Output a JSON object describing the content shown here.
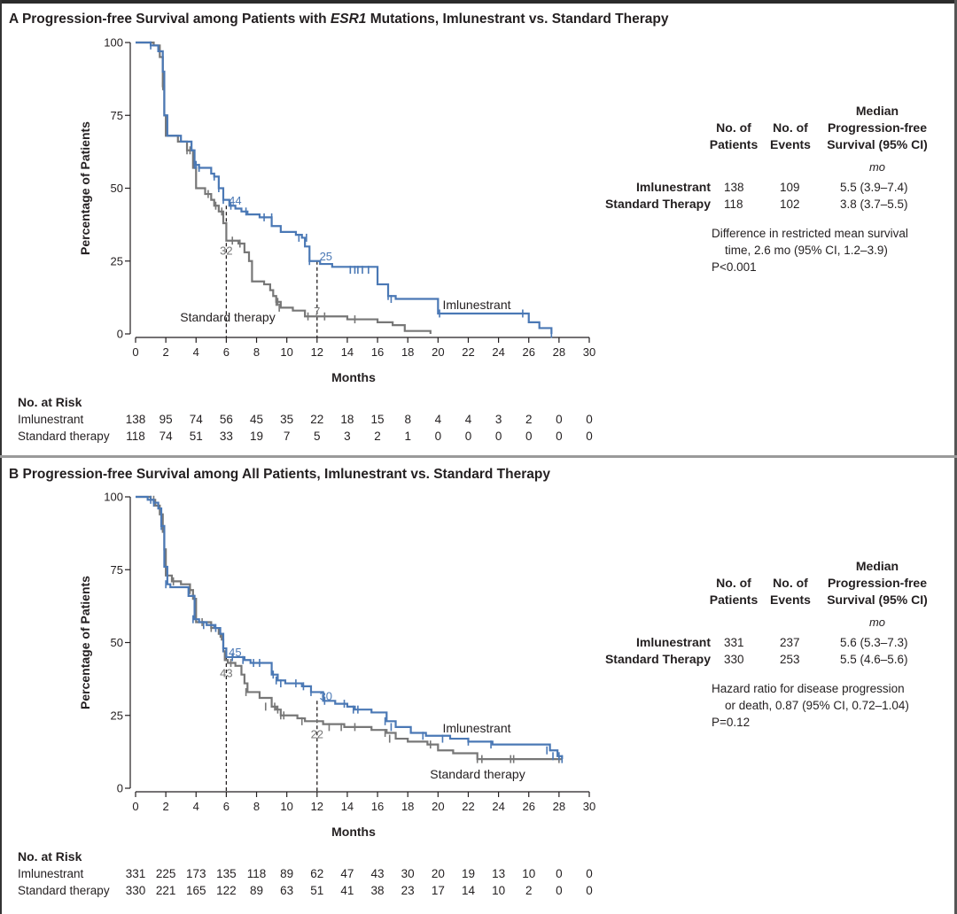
{
  "panels": [
    {
      "id": "A",
      "letter": "A",
      "title_pre": "Progression-free Survival among Patients with ",
      "title_em": "ESR1",
      "title_post": " Mutations, Imlunestrant vs. Standard Therapy",
      "ylabel": "Percentage of Patients",
      "xlabel": "Months",
      "table_headers": {
        "patients_1": "No. of",
        "patients_2": "Patients",
        "events_1": "No. of",
        "events_2": "Events",
        "median_1": "Median",
        "median_2": "Progression-free",
        "median_3": "Survival (95% CI)",
        "unit": "mo"
      },
      "table_rows": [
        {
          "arm": "Imlunestrant",
          "patients": "138",
          "events": "109",
          "median": "5.5 (3.9–7.4)"
        },
        {
          "arm": "Standard Therapy",
          "patients": "118",
          "events": "102",
          "median": "3.8 (3.7–5.5)"
        }
      ],
      "stat_lines": [
        "Difference in restricted mean survival",
        "time, 2.6 mo (95% CI, 1.2–3.9)",
        "P<0.001"
      ],
      "series_labels": {
        "imlunestrant": "Imlunestrant",
        "standard": "Standard therapy"
      },
      "annotations": [
        {
          "x": 6,
          "value": "44",
          "series": "imlunestrant"
        },
        {
          "x": 6,
          "value": "32",
          "series": "standard"
        },
        {
          "x": 12,
          "value": "25",
          "series": "imlunestrant"
        },
        {
          "x": 12,
          "value": "7",
          "series": "standard"
        }
      ],
      "risk_title": "No. at Risk",
      "risk_rows": [
        {
          "label": "Imlunestrant",
          "values": [
            "138",
            "95",
            "74",
            "56",
            "45",
            "35",
            "22",
            "18",
            "15",
            "8",
            "4",
            "4",
            "3",
            "2",
            "0",
            "0"
          ]
        },
        {
          "label": "Standard therapy",
          "values": [
            "118",
            "74",
            "51",
            "33",
            "19",
            "7",
            "5",
            "3",
            "2",
            "1",
            "0",
            "0",
            "0",
            "0",
            "0",
            "0"
          ]
        }
      ]
    },
    {
      "id": "B",
      "letter": "B",
      "title_pre": "Progression-free Survival among All Patients, Imlunestrant vs. Standard Therapy",
      "title_em": "",
      "title_post": "",
      "ylabel": "Percentage of Patients",
      "xlabel": "Months",
      "table_headers": {
        "patients_1": "No. of",
        "patients_2": "Patients",
        "events_1": "No. of",
        "events_2": "Events",
        "median_1": "Median",
        "median_2": "Progression-free",
        "median_3": "Survival (95% CI)",
        "unit": "mo"
      },
      "table_rows": [
        {
          "arm": "Imlunestrant",
          "patients": "331",
          "events": "237",
          "median": "5.6 (5.3–7.3)"
        },
        {
          "arm": "Standard Therapy",
          "patients": "330",
          "events": "253",
          "median": "5.5 (4.6–5.6)"
        }
      ],
      "stat_lines": [
        "Hazard ratio for disease progression",
        "or death, 0.87 (95% CI, 0.72–1.04)",
        "P=0.12"
      ],
      "series_labels": {
        "imlunestrant": "Imlunestrant",
        "standard": "Standard therapy"
      },
      "annotations": [
        {
          "x": 6,
          "value": "45",
          "series": "imlunestrant"
        },
        {
          "x": 6,
          "value": "43",
          "series": "standard"
        },
        {
          "x": 12,
          "value": "30",
          "series": "imlunestrant"
        },
        {
          "x": 12,
          "value": "22",
          "series": "standard"
        }
      ],
      "risk_title": "No. at Risk",
      "risk_rows": [
        {
          "label": "Imlunestrant",
          "values": [
            "331",
            "225",
            "173",
            "135",
            "118",
            "89",
            "62",
            "47",
            "43",
            "30",
            "20",
            "19",
            "13",
            "10",
            "0",
            "0"
          ]
        },
        {
          "label": "Standard therapy",
          "values": [
            "330",
            "221",
            "165",
            "122",
            "89",
            "63",
            "51",
            "41",
            "38",
            "23",
            "17",
            "14",
            "10",
            "2",
            "0",
            "0"
          ]
        }
      ]
    }
  ],
  "colors": {
    "imlunestrant": "#4a78b5",
    "standard": "#777777",
    "text": "#231f20"
  },
  "chart_data": [
    {
      "type": "line",
      "title": "Progression-free Survival among Patients with ESR1 Mutations, Imlunestrant vs. Standard Therapy",
      "xlabel": "Months",
      "ylabel": "Percentage of Patients",
      "xlim": [
        0,
        30
      ],
      "ylim": [
        0,
        100
      ],
      "xticks": [
        0,
        2,
        4,
        6,
        8,
        10,
        12,
        14,
        16,
        18,
        20,
        22,
        24,
        26,
        28,
        30
      ],
      "yticks": [
        0,
        25,
        50,
        75,
        100
      ],
      "grid": false,
      "series": [
        {
          "name": "Imlunestrant",
          "color": "#4a78b5",
          "x": [
            0,
            1.0,
            1.5,
            1.8,
            1.9,
            2.1,
            3.0,
            3.7,
            3.9,
            4.2,
            5.0,
            5.2,
            5.5,
            5.8,
            6.2,
            6.6,
            7.0,
            7.4,
            8.2,
            9.0,
            9.6,
            10.6,
            11.0,
            11.2,
            11.5,
            12.2,
            13.0,
            16.0,
            16.7,
            17.2,
            20.0,
            25.5,
            26.0,
            26.7,
            27.5
          ],
          "y": [
            100,
            99,
            97,
            90,
            75,
            68,
            66,
            63,
            58,
            57,
            55,
            54,
            50,
            46,
            44,
            43,
            42,
            41,
            40,
            37,
            35,
            34,
            33,
            30,
            25,
            24,
            23,
            17,
            13,
            12,
            7,
            7,
            4,
            2,
            0
          ],
          "censor_x": [
            1.0,
            3.9,
            4.0,
            4.2,
            5.2,
            5.5,
            5.8,
            6.3,
            7.3,
            8.5,
            9.0,
            10.8,
            11.3,
            11.5,
            14.2,
            14.5,
            14.7,
            15.0,
            15.4,
            16.7,
            16.9,
            20.1,
            25.6,
            27.5
          ],
          "censor_y": [
            99,
            58,
            58,
            57,
            54,
            50,
            46,
            44,
            42,
            40,
            40,
            33,
            33,
            25,
            22,
            22,
            22,
            22,
            22,
            13,
            12,
            7,
            7,
            0
          ]
        },
        {
          "name": "Standard therapy",
          "color": "#777777",
          "x": [
            0,
            1.2,
            1.6,
            1.8,
            1.9,
            2.0,
            2.8,
            3.4,
            3.8,
            4.0,
            4.6,
            5.0,
            5.2,
            5.5,
            5.8,
            6.0,
            6.8,
            7.2,
            7.5,
            7.7,
            8.5,
            8.9,
            9.1,
            9.3,
            9.6,
            10.4,
            11.0,
            11.2,
            14.0,
            16.0,
            17.0,
            17.8,
            19.5
          ],
          "y": [
            100,
            99,
            95,
            85,
            75,
            68,
            66,
            63,
            57,
            50,
            48,
            46,
            44,
            42,
            38,
            32,
            31,
            28,
            25,
            18,
            17,
            15,
            13,
            11,
            9,
            8,
            8,
            6,
            5,
            4,
            3,
            1,
            0
          ],
          "censor_x": [
            1.8,
            3.4,
            3.6,
            4.2,
            4.8,
            5.3,
            5.7,
            6.4,
            6.9,
            9.3,
            9.4,
            9.5,
            11.4,
            12.5,
            14.5
          ],
          "censor_y": [
            85,
            63,
            63,
            57,
            48,
            44,
            42,
            32,
            31,
            11,
            11,
            9,
            6,
            6,
            5
          ]
        }
      ],
      "annotations": [
        {
          "x": 6,
          "text": "44"
        },
        {
          "x": 6,
          "text": "32"
        },
        {
          "x": 12,
          "text": "25"
        },
        {
          "x": 12,
          "text": "7"
        }
      ],
      "legend": "none"
    },
    {
      "type": "line",
      "title": "Progression-free Survival among All Patients, Imlunestrant vs. Standard Therapy",
      "xlabel": "Months",
      "ylabel": "Percentage of Patients",
      "xlim": [
        0,
        30
      ],
      "ylim": [
        0,
        100
      ],
      "xticks": [
        0,
        2,
        4,
        6,
        8,
        10,
        12,
        14,
        16,
        18,
        20,
        22,
        24,
        26,
        28,
        30
      ],
      "yticks": [
        0,
        25,
        50,
        75,
        100
      ],
      "grid": false,
      "series": [
        {
          "name": "Imlunestrant",
          "color": "#4a78b5",
          "x": [
            0,
            0.8,
            1.2,
            1.5,
            1.7,
            1.9,
            2.1,
            2.3,
            3.5,
            3.9,
            4.2,
            4.7,
            5.2,
            5.6,
            5.8,
            6.0,
            7.2,
            7.6,
            9.0,
            9.4,
            9.9,
            11.0,
            11.6,
            12.4,
            13.2,
            14.0,
            14.5,
            15.6,
            16.6,
            17.2,
            18.2,
            19.2,
            20.8,
            22.0,
            23.6,
            27.4,
            27.9,
            28.2
          ],
          "y": [
            100,
            99,
            98,
            96,
            90,
            76,
            70,
            69,
            66,
            58,
            57,
            56,
            55,
            53,
            48,
            45,
            44,
            43,
            39,
            37,
            36,
            35,
            33,
            30,
            29,
            28,
            27,
            26,
            23,
            21,
            19,
            18,
            17,
            16,
            15,
            13,
            11,
            10
          ],
          "censor_x": [
            1.0,
            1.2,
            1.7,
            2.0,
            3.8,
            4.5,
            5.3,
            5.8,
            6.4,
            7.1,
            7.8,
            8.2,
            9.1,
            9.3,
            9.6,
            10.6,
            11.1,
            11.6,
            12.5,
            13.8,
            14.4,
            14.7,
            16.5,
            16.9,
            19.0,
            20.3,
            22.0,
            23.5,
            27.2,
            27.6,
            28.0,
            28.2
          ],
          "censor_y": [
            99,
            98,
            90,
            70,
            58,
            56,
            55,
            48,
            45,
            44,
            43,
            43,
            39,
            37,
            36,
            36,
            35,
            33,
            30,
            29,
            27,
            27,
            23,
            21,
            18,
            17,
            16,
            15,
            13,
            11,
            11,
            10
          ]
        },
        {
          "name": "Standard therapy",
          "color": "#777777",
          "x": [
            0,
            1.0,
            1.3,
            1.6,
            1.8,
            1.9,
            2.0,
            2.4,
            3.0,
            3.6,
            3.8,
            4.0,
            5.0,
            5.5,
            5.7,
            5.8,
            5.9,
            6.1,
            6.6,
            7.0,
            7.2,
            7.4,
            8.2,
            9.0,
            9.3,
            9.6,
            10.7,
            11.2,
            12.4,
            13.8,
            14.6,
            15.6,
            16.6,
            17.2,
            18.0,
            19.3,
            20.0,
            21.0,
            22.6,
            25.0,
            26.6,
            27.4,
            28.2
          ],
          "y": [
            100,
            99,
            97,
            94,
            88,
            82,
            73,
            71,
            70,
            68,
            65,
            57,
            55,
            53,
            51,
            47,
            44,
            43,
            42,
            39,
            36,
            33,
            31,
            28,
            27,
            25,
            24,
            23,
            22,
            21,
            21,
            20,
            19,
            17,
            16,
            15,
            13,
            12,
            10,
            10,
            10,
            10,
            10
          ],
          "censor_x": [
            1.2,
            1.9,
            2.5,
            3.6,
            3.9,
            4.4,
            5.0,
            5.6,
            6.3,
            7.3,
            8.6,
            9.2,
            9.4,
            9.6,
            9.8,
            11.0,
            12.8,
            13.6,
            14.5,
            16.5,
            16.8,
            19.5,
            22.6,
            22.9,
            24.8,
            25.0,
            28.0
          ],
          "censor_y": [
            99,
            82,
            71,
            68,
            65,
            57,
            55,
            53,
            43,
            33,
            28,
            28,
            27,
            25,
            25,
            23,
            21,
            21,
            21,
            19,
            17,
            15,
            10,
            10,
            10,
            10,
            10
          ]
        }
      ],
      "annotations": [
        {
          "x": 6,
          "text": "45"
        },
        {
          "x": 6,
          "text": "43"
        },
        {
          "x": 12,
          "text": "30"
        },
        {
          "x": 12,
          "text": "22"
        }
      ],
      "legend": "none"
    }
  ]
}
